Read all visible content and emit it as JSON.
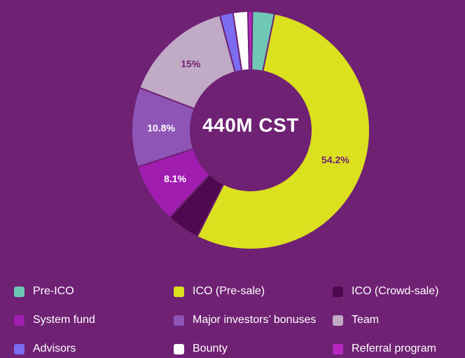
{
  "chart_data": {
    "type": "pie",
    "center_label": "440M CST",
    "slices": [
      {
        "name": "Pre-ICO",
        "value": 3.0,
        "color": "#6fc7b5",
        "label": ""
      },
      {
        "name": "ICO (Pre-sale)",
        "value": 54.2,
        "color": "#dbe01f",
        "label": "54.2%"
      },
      {
        "name": "ICO (Crowd-sale)",
        "value": 4.5,
        "color": "#4d0a4e",
        "label": ""
      },
      {
        "name": "System fund",
        "value": 8.1,
        "color": "#a11db0",
        "label": "8.1%"
      },
      {
        "name": "Major investors' bonuses",
        "value": 10.8,
        "color": "#8e55b6",
        "label": "10.8%"
      },
      {
        "name": "Team",
        "value": 15.0,
        "color": "#c0aac6",
        "label": "15%"
      },
      {
        "name": "Advisors",
        "value": 1.8,
        "color": "#7b6cf0",
        "label": ""
      },
      {
        "name": "Bounty",
        "value": 2.0,
        "color": "#ffffff",
        "label": ""
      },
      {
        "name": "Referral program",
        "value": 0.6,
        "color": "#b727c0",
        "label": ""
      }
    ],
    "legend": [
      {
        "label": "Pre-ICO",
        "color": "#6fc7b5"
      },
      {
        "label": "ICO (Pre-sale)",
        "color": "#dbe01f"
      },
      {
        "label": "ICO (Crowd-sale)",
        "color": "#4d0a4e"
      },
      {
        "label": "System fund",
        "color": "#a11db0"
      },
      {
        "label": "Major investors’ bonuses",
        "color": "#8e55b6"
      },
      {
        "label": "Team",
        "color": "#c0aac6"
      },
      {
        "label": "Advisors",
        "color": "#7b6cf0"
      },
      {
        "label": "Bounty",
        "color": "#ffffff"
      },
      {
        "label": "Referral program",
        "color": "#b727c0"
      }
    ],
    "legend_placement": "bottom"
  }
}
